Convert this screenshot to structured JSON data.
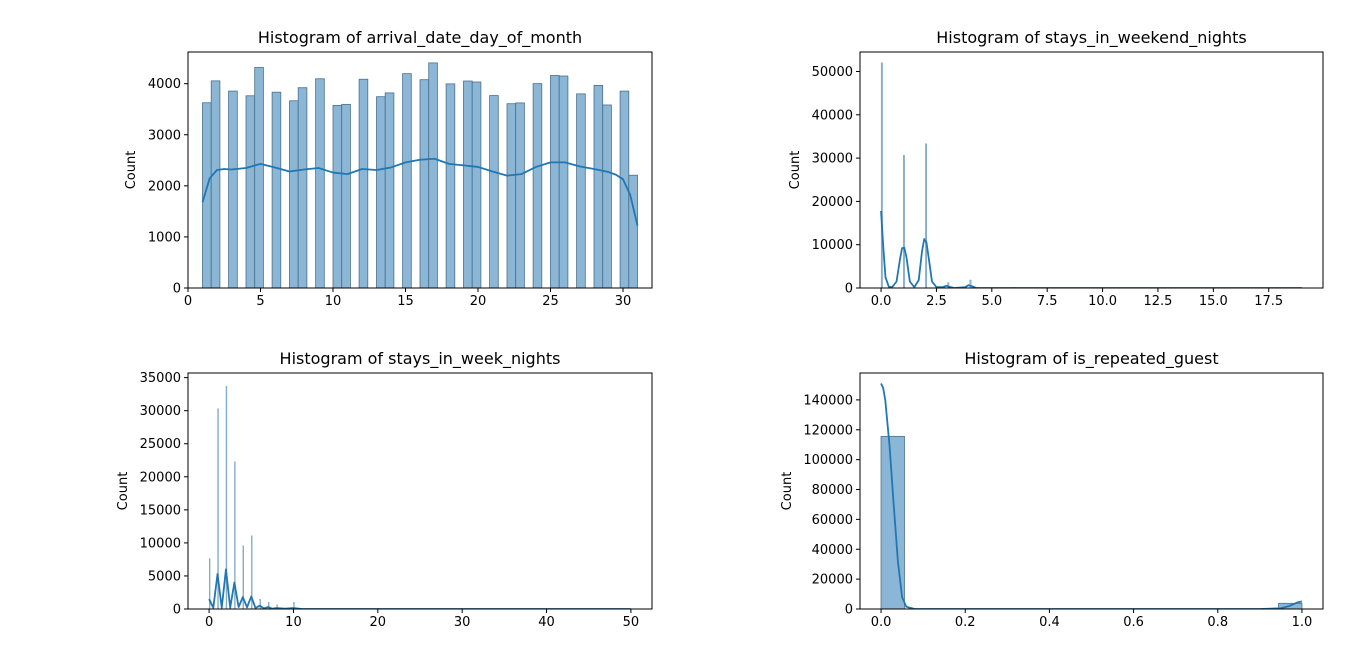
{
  "chart_data": [
    {
      "type": "bar",
      "variant": "histogram-with-kde",
      "title": "Histogram of arrival_date_day_of_month",
      "xlabel": "",
      "ylabel": "Count",
      "xlim": [
        0.0,
        32.0
      ],
      "ylim": [
        0,
        4620
      ],
      "xticks": [
        0,
        5,
        10,
        15,
        20,
        25,
        30
      ],
      "xticklabels": [
        "0",
        "5",
        "10",
        "15",
        "20",
        "25",
        "30"
      ],
      "yticks": [
        0,
        1000,
        2000,
        3000,
        4000
      ],
      "yticklabels": [
        "0",
        "1000",
        "2000",
        "3000",
        "4000"
      ],
      "bars": [
        {
          "x0": 1.0,
          "x1": 1.6,
          "count": 3626
        },
        {
          "x0": 1.6,
          "x1": 2.2,
          "count": 4055
        },
        {
          "x0": 2.8,
          "x1": 3.4,
          "count": 3855
        },
        {
          "x0": 4.0,
          "x1": 4.6,
          "count": 3763
        },
        {
          "x0": 4.6,
          "x1": 5.2,
          "count": 4317
        },
        {
          "x0": 5.8,
          "x1": 6.4,
          "count": 3833
        },
        {
          "x0": 7.0,
          "x1": 7.6,
          "count": 3665
        },
        {
          "x0": 7.6,
          "x1": 8.2,
          "count": 3921
        },
        {
          "x0": 8.8,
          "x1": 9.4,
          "count": 4096
        },
        {
          "x0": 10.0,
          "x1": 10.6,
          "count": 3575
        },
        {
          "x0": 10.6,
          "x1": 11.2,
          "count": 3595
        },
        {
          "x0": 11.8,
          "x1": 12.4,
          "count": 4087
        },
        {
          "x0": 13.0,
          "x1": 13.6,
          "count": 3745
        },
        {
          "x0": 13.6,
          "x1": 14.2,
          "count": 3819
        },
        {
          "x0": 14.8,
          "x1": 15.4,
          "count": 4196
        },
        {
          "x0": 16.0,
          "x1": 16.6,
          "count": 4078
        },
        {
          "x0": 16.6,
          "x1": 17.2,
          "count": 4406
        },
        {
          "x0": 17.8,
          "x1": 18.4,
          "count": 3996
        },
        {
          "x0": 19.0,
          "x1": 19.6,
          "count": 4052
        },
        {
          "x0": 19.6,
          "x1": 20.2,
          "count": 4033
        },
        {
          "x0": 20.8,
          "x1": 21.4,
          "count": 3767
        },
        {
          "x0": 22.0,
          "x1": 22.6,
          "count": 3608
        },
        {
          "x0": 22.6,
          "x1": 23.2,
          "count": 3623
        },
        {
          "x0": 23.8,
          "x1": 24.4,
          "count": 4001
        },
        {
          "x0": 25.0,
          "x1": 25.6,
          "count": 4160
        },
        {
          "x0": 25.6,
          "x1": 26.2,
          "count": 4150
        },
        {
          "x0": 26.8,
          "x1": 27.4,
          "count": 3800
        },
        {
          "x0": 28.0,
          "x1": 28.6,
          "count": 3966
        },
        {
          "x0": 28.6,
          "x1": 29.2,
          "count": 3583
        },
        {
          "x0": 29.8,
          "x1": 30.4,
          "count": 3855
        },
        {
          "x0": 30.4,
          "x1": 31.0,
          "count": 2208
        }
      ],
      "kde": {
        "x": [
          1,
          1.5,
          2,
          2.5,
          3,
          4,
          5,
          6,
          7,
          8,
          9,
          10,
          11,
          12,
          13,
          14,
          15,
          16,
          17,
          18,
          19,
          20,
          21,
          22,
          23,
          24,
          25,
          26,
          27,
          28,
          29,
          29.5,
          30,
          30.5,
          31
        ],
        "y": [
          1680,
          2150,
          2310,
          2330,
          2320,
          2350,
          2430,
          2360,
          2280,
          2320,
          2350,
          2260,
          2230,
          2330,
          2310,
          2360,
          2460,
          2510,
          2530,
          2430,
          2400,
          2370,
          2280,
          2200,
          2230,
          2370,
          2460,
          2460,
          2380,
          2330,
          2270,
          2220,
          2130,
          1820,
          1220
        ]
      }
    },
    {
      "type": "bar",
      "variant": "histogram-with-kde",
      "title": "Histogram of stays_in_weekend_nights",
      "xlabel": "",
      "ylabel": "Count",
      "xlim": [
        -0.95,
        19.95
      ],
      "ylim": [
        0,
        54500
      ],
      "xticks": [
        0.0,
        2.5,
        5.0,
        7.5,
        10.0,
        12.5,
        15.0,
        17.5
      ],
      "xticklabels": [
        "0.0",
        "2.5",
        "5.0",
        "7.5",
        "10.0",
        "12.5",
        "15.0",
        "17.5"
      ],
      "yticks": [
        0,
        10000,
        20000,
        30000,
        40000,
        50000
      ],
      "yticklabels": [
        "0",
        "10000",
        "20000",
        "30000",
        "40000",
        "50000"
      ],
      "bars": [
        {
          "x0": 0.0,
          "x1": 0.07,
          "count": 51998
        },
        {
          "x0": 1.0,
          "x1": 1.07,
          "count": 30626
        },
        {
          "x0": 2.0,
          "x1": 2.07,
          "count": 33308
        },
        {
          "x0": 3.0,
          "x1": 3.07,
          "count": 1259
        },
        {
          "x0": 4.0,
          "x1": 4.07,
          "count": 1855
        },
        {
          "x0": 5.0,
          "x1": 5.07,
          "count": 79
        },
        {
          "x0": 6.0,
          "x1": 6.07,
          "count": 153
        }
      ],
      "kde": {
        "x": [
          0,
          0.1,
          0.2,
          0.35,
          0.5,
          0.7,
          0.85,
          0.95,
          1.05,
          1.15,
          1.3,
          1.5,
          1.7,
          1.85,
          1.95,
          2.05,
          2.15,
          2.3,
          2.5,
          2.8,
          2.95,
          3.1,
          3.3,
          3.8,
          3.95,
          4.1,
          4.3,
          5,
          10,
          15,
          19
        ],
        "y": [
          17800,
          9500,
          2500,
          300,
          200,
          1500,
          6500,
          9200,
          9300,
          7000,
          1500,
          200,
          1800,
          8500,
          11300,
          10500,
          7000,
          1500,
          200,
          200,
          500,
          250,
          0,
          200,
          650,
          400,
          0,
          0,
          0,
          0,
          0
        ]
      }
    },
    {
      "type": "bar",
      "variant": "histogram-with-kde",
      "title": "Histogram of stays_in_week_nights",
      "xlabel": "",
      "ylabel": "Count",
      "xlim": [
        -2.5,
        52.5
      ],
      "ylim": [
        0,
        35700
      ],
      "xticks": [
        0,
        10,
        20,
        30,
        40,
        50
      ],
      "xticklabels": [
        "0",
        "10",
        "20",
        "30",
        "40",
        "50"
      ],
      "yticks": [
        0,
        5000,
        10000,
        15000,
        20000,
        25000,
        30000,
        35000
      ],
      "yticklabels": [
        "0",
        "5000",
        "10000",
        "15000",
        "20000",
        "25000",
        "30000",
        "35000"
      ],
      "bars": [
        {
          "x0": 0.0,
          "x1": 0.12,
          "count": 7645
        },
        {
          "x0": 1.0,
          "x1": 1.12,
          "count": 30310
        },
        {
          "x0": 2.0,
          "x1": 2.12,
          "count": 33684
        },
        {
          "x0": 3.0,
          "x1": 3.12,
          "count": 22258
        },
        {
          "x0": 4.0,
          "x1": 4.12,
          "count": 9563
        },
        {
          "x0": 5.0,
          "x1": 5.12,
          "count": 11077
        },
        {
          "x0": 6.0,
          "x1": 6.12,
          "count": 1499
        },
        {
          "x0": 7.0,
          "x1": 7.12,
          "count": 1029
        },
        {
          "x0": 8.0,
          "x1": 8.12,
          "count": 656
        },
        {
          "x0": 10.0,
          "x1": 10.12,
          "count": 1036
        }
      ],
      "kde": {
        "x": [
          0,
          0.5,
          1,
          1.5,
          2,
          2.5,
          3,
          3.5,
          4,
          4.5,
          5,
          5.5,
          6,
          6.5,
          7,
          7.5,
          8,
          9,
          10,
          11,
          15,
          50
        ],
        "y": [
          1500,
          200,
          5300,
          200,
          6000,
          200,
          4000,
          300,
          1800,
          250,
          1900,
          150,
          500,
          100,
          300,
          50,
          150,
          50,
          150,
          0,
          0,
          0
        ]
      }
    },
    {
      "type": "bar",
      "variant": "histogram-with-kde",
      "title": "Histogram of is_repeated_guest",
      "xlabel": "",
      "ylabel": "Count",
      "xlim": [
        -0.05,
        1.05
      ],
      "ylim": [
        0,
        158000
      ],
      "xticks": [
        0.0,
        0.2,
        0.4,
        0.6,
        0.8,
        1.0
      ],
      "xticklabels": [
        "0.0",
        "0.2",
        "0.4",
        "0.6",
        "0.8",
        "1.0"
      ],
      "yticks": [
        0,
        20000,
        40000,
        60000,
        80000,
        100000,
        120000,
        140000
      ],
      "yticklabels": [
        "0",
        "20000",
        "40000",
        "60000",
        "80000",
        "100000",
        "120000",
        "140000"
      ],
      "bars": [
        {
          "x0": 0.0,
          "x1": 0.0556,
          "count": 115580
        },
        {
          "x0": 0.9444,
          "x1": 1.0,
          "count": 3810
        }
      ],
      "kde": {
        "x": [
          0,
          0.005,
          0.01,
          0.02,
          0.03,
          0.04,
          0.05,
          0.06,
          0.08,
          0.1,
          0.5,
          0.9,
          0.95,
          0.97,
          0.99,
          1.0
        ],
        "y": [
          151000,
          148000,
          140000,
          110000,
          70000,
          32000,
          8000,
          1500,
          0,
          0,
          0,
          0,
          500,
          2000,
          4500,
          5000
        ]
      }
    }
  ],
  "colors": {
    "bar_fill": "#8cb6d6",
    "bar_edge": "#4a6f8c",
    "kde_line": "#1f77b4",
    "axes": "#000000"
  }
}
